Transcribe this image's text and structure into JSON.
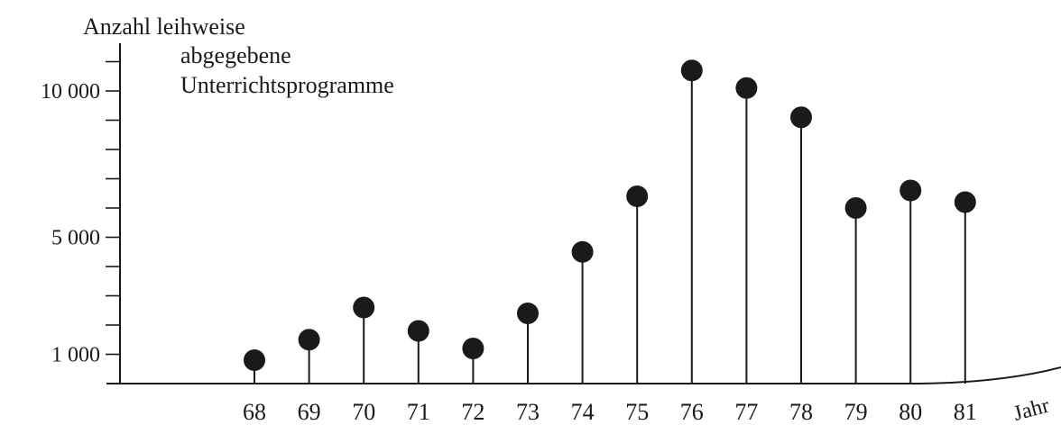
{
  "chart_data": {
    "type": "stem",
    "ylabel_lines": [
      "Anzahl leihweise",
      "abgegebene",
      "Unterrichtsprogramme"
    ],
    "xlabel": "Jahr",
    "ytick_values": [
      1000,
      5000,
      10000
    ],
    "ytick_labels": [
      "1 000",
      "5 000",
      "10 000"
    ],
    "minor_ytick_values": [
      2000,
      3000,
      4000,
      6000,
      7000,
      8000,
      9000,
      11000
    ],
    "ylim": [
      0,
      11000
    ],
    "categories": [
      "68",
      "69",
      "70",
      "71",
      "72",
      "73",
      "74",
      "75",
      "76",
      "77",
      "78",
      "79",
      "80",
      "81"
    ],
    "values": [
      800,
      1500,
      2600,
      1800,
      1200,
      2400,
      4500,
      6400,
      10700,
      10100,
      9100,
      6000,
      6600,
      6200
    ],
    "grid": false,
    "legend": "none"
  }
}
